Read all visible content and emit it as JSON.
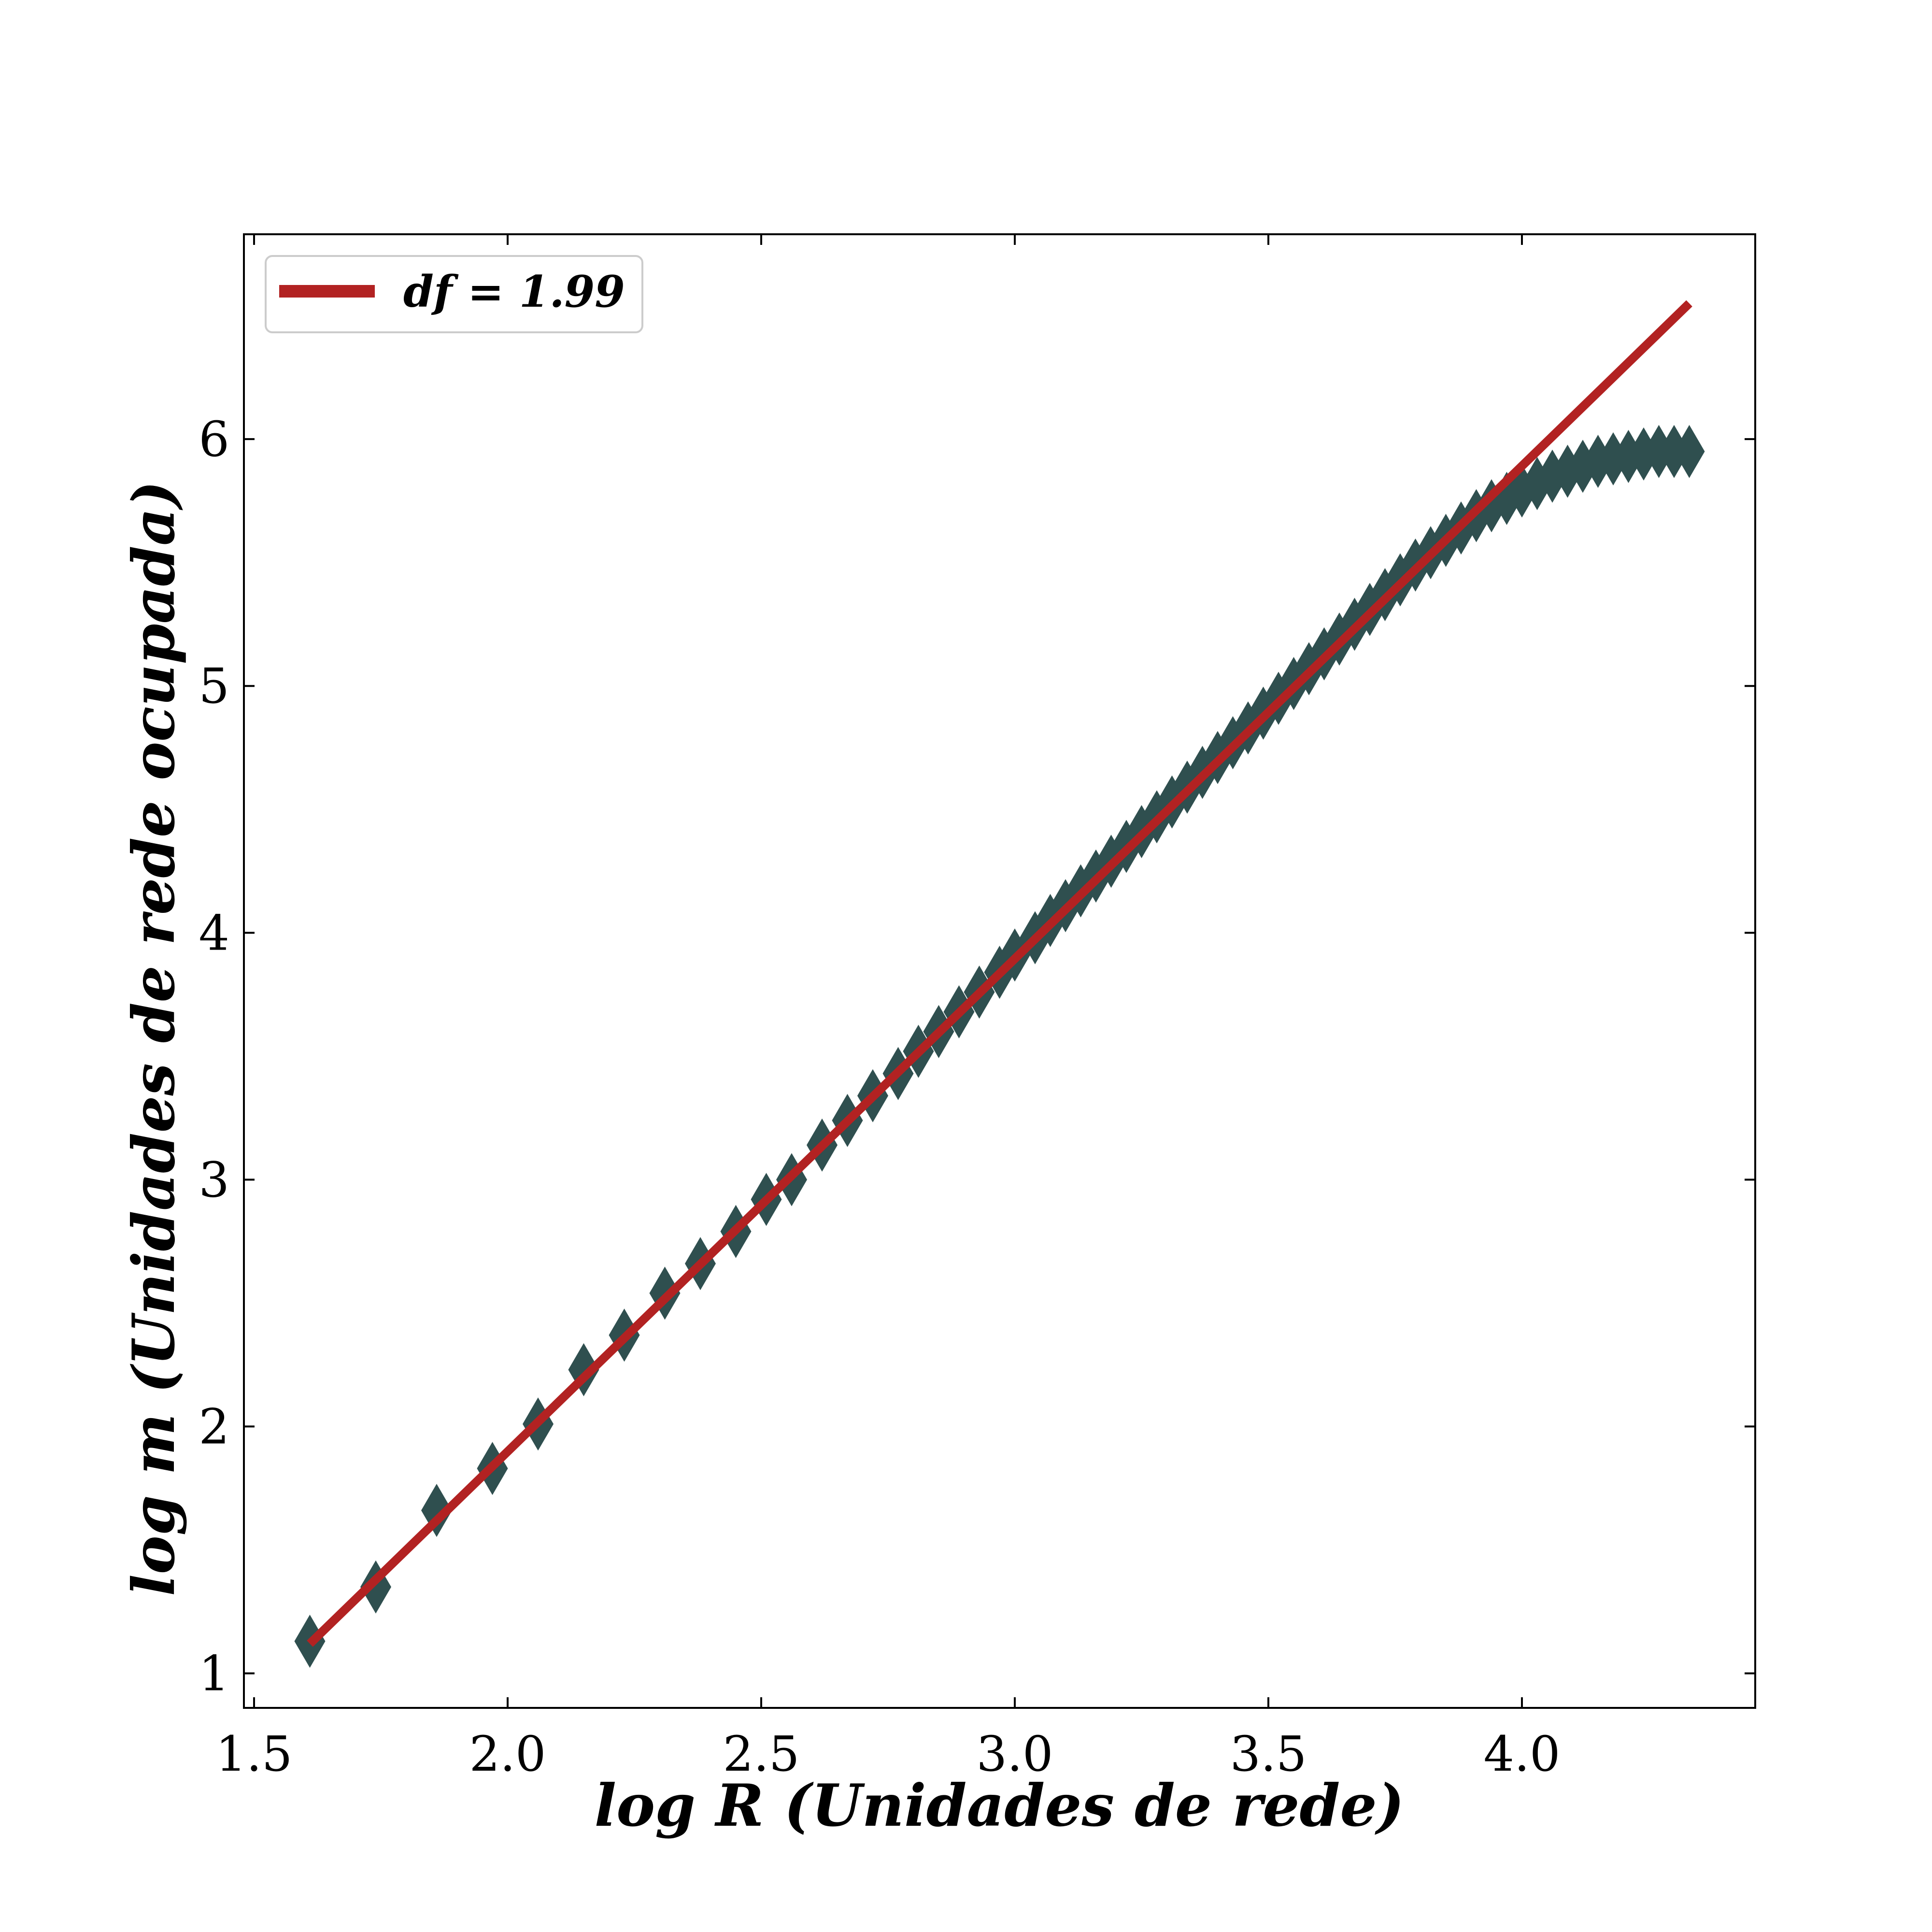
{
  "chart_data": {
    "type": "scatter",
    "xlabel": "log R (Unidades de rede)",
    "ylabel": "log m (Unidades de rede ocupada)",
    "xlim": [
      1.48,
      4.46
    ],
    "ylim": [
      0.86,
      6.83
    ],
    "x_ticks": [
      1.5,
      2.0,
      2.5,
      3.0,
      3.5,
      4.0
    ],
    "x_tick_labels": [
      "1.5",
      "2.0",
      "2.5",
      "3.0",
      "3.5",
      "4.0"
    ],
    "y_ticks": [
      1,
      2,
      3,
      4,
      5,
      6
    ],
    "y_tick_labels": [
      "1",
      "2",
      "3",
      "4",
      "5",
      "6"
    ],
    "grid": false,
    "legend": {
      "position": "top-left",
      "entries": [
        {
          "label": "df = 1.99",
          "color": "#b22222",
          "marker": "line"
        }
      ]
    },
    "series": [
      {
        "kind": "scatter",
        "marker": "diamond",
        "color": "#2f4f4f",
        "points": [
          [
            1.61,
            1.13
          ],
          [
            1.74,
            1.35
          ],
          [
            1.86,
            1.66
          ],
          [
            1.97,
            1.83
          ],
          [
            2.06,
            2.01
          ],
          [
            2.15,
            2.23
          ],
          [
            2.23,
            2.37
          ],
          [
            2.31,
            2.54
          ],
          [
            2.38,
            2.66
          ],
          [
            2.45,
            2.79
          ],
          [
            2.51,
            2.92
          ],
          [
            2.56,
            3.0
          ],
          [
            2.62,
            3.14
          ],
          [
            2.67,
            3.24
          ],
          [
            2.72,
            3.34
          ],
          [
            2.77,
            3.43
          ],
          [
            2.81,
            3.52
          ],
          [
            2.85,
            3.6
          ],
          [
            2.89,
            3.68
          ],
          [
            2.93,
            3.76
          ],
          [
            2.97,
            3.84
          ],
          [
            3.0,
            3.91
          ],
          [
            3.04,
            3.98
          ],
          [
            3.07,
            4.05
          ],
          [
            3.1,
            4.11
          ],
          [
            3.13,
            4.17
          ],
          [
            3.16,
            4.23
          ],
          [
            3.19,
            4.29
          ],
          [
            3.22,
            4.35
          ],
          [
            3.25,
            4.41
          ],
          [
            3.28,
            4.47
          ],
          [
            3.31,
            4.53
          ],
          [
            3.34,
            4.59
          ],
          [
            3.37,
            4.65
          ],
          [
            3.4,
            4.71
          ],
          [
            3.43,
            4.77
          ],
          [
            3.46,
            4.83
          ],
          [
            3.49,
            4.89
          ],
          [
            3.52,
            4.95
          ],
          [
            3.55,
            5.01
          ],
          [
            3.58,
            5.07
          ],
          [
            3.61,
            5.13
          ],
          [
            3.64,
            5.19
          ],
          [
            3.67,
            5.25
          ],
          [
            3.7,
            5.31
          ],
          [
            3.73,
            5.37
          ],
          [
            3.76,
            5.43
          ],
          [
            3.79,
            5.49
          ],
          [
            3.82,
            5.54
          ],
          [
            3.85,
            5.59
          ],
          [
            3.88,
            5.64
          ],
          [
            3.91,
            5.69
          ],
          [
            3.94,
            5.73
          ],
          [
            3.97,
            5.76
          ],
          [
            4.0,
            5.79
          ],
          [
            4.03,
            5.82
          ],
          [
            4.06,
            5.85
          ],
          [
            4.09,
            5.87
          ],
          [
            4.12,
            5.89
          ],
          [
            4.15,
            5.91
          ],
          [
            4.18,
            5.92
          ],
          [
            4.21,
            5.93
          ],
          [
            4.24,
            5.94
          ],
          [
            4.27,
            5.95
          ],
          [
            4.3,
            5.95
          ],
          [
            4.33,
            5.95
          ]
        ]
      },
      {
        "name": "df = 1.99",
        "kind": "line",
        "color": "#b22222",
        "points": [
          [
            1.61,
            1.12
          ],
          [
            4.33,
            6.55
          ]
        ]
      }
    ]
  }
}
